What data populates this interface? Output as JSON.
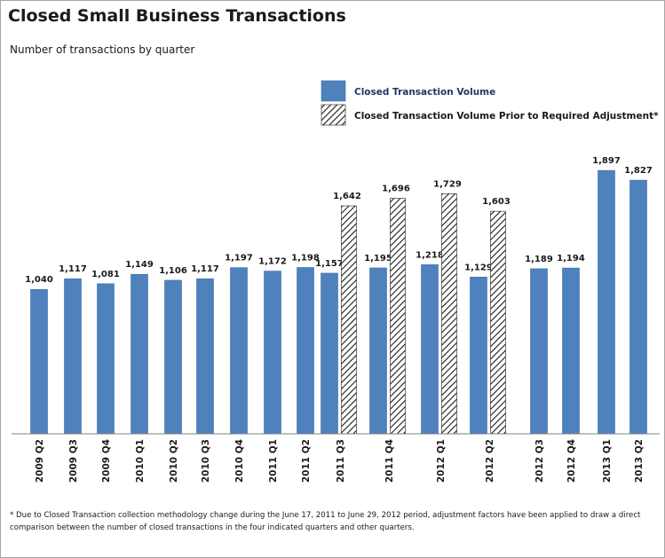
{
  "title": "Closed Small Business Transactions",
  "subtitle": "Number of transactions by quarter",
  "footnote": "* Due to Closed Transaction collection methodology change during the June 17, 2011 to June 29, 2012 period, adjustment factors have been applied to draw a direct comparison between the number of closed transactions in the four indicated quarters and other quarters.",
  "colors": {
    "primary_bar": "#4f81bd",
    "primary_bar_edge": "#3d6ea8",
    "hatch": "#1a1a1a",
    "legend_primary_text": "#1f3864",
    "legend_secondary_text": "#1a1a1a"
  },
  "chart_data": {
    "type": "bar",
    "title": "Closed Small Business Transactions",
    "subtitle": "Number of transactions by quarter",
    "categories": [
      "2009 Q2",
      "2009 Q3",
      "2009 Q4",
      "2010 Q1",
      "2010 Q2",
      "2010 Q3",
      "2010 Q4",
      "2011 Q1",
      "2011 Q2",
      "2011 Q3",
      "2011 Q4",
      "2012 Q1",
      "2012 Q2",
      "2012 Q3",
      "2012 Q4",
      "2013 Q1",
      "2013 Q2"
    ],
    "series": [
      {
        "name": "Closed Transaction Volume",
        "style": "solid",
        "values": [
          1040,
          1117,
          1081,
          1149,
          1106,
          1117,
          1197,
          1172,
          1198,
          1157,
          1195,
          1218,
          1129,
          1189,
          1194,
          1897,
          1827
        ],
        "labels": [
          "1,040",
          "1,117",
          "1,081",
          "1,149",
          "1,106",
          "1,117",
          "1,197",
          "1,172",
          "1,198",
          "1,157",
          "1,195",
          "1,218",
          "1,129",
          "1,189",
          "1,194",
          "1,897",
          "1,827"
        ]
      },
      {
        "name": "Closed Transaction Volume Prior to Required Adjustment*",
        "style": "hatched",
        "values": [
          null,
          null,
          null,
          null,
          null,
          null,
          null,
          null,
          null,
          1642,
          1696,
          1729,
          1603,
          null,
          null,
          null,
          null
        ],
        "labels": [
          null,
          null,
          null,
          null,
          null,
          null,
          null,
          null,
          null,
          "1,642",
          "1,696",
          "1,729",
          "1,603",
          null,
          null,
          null,
          null
        ]
      }
    ],
    "ylim": [
      0,
      2100
    ],
    "grid": false,
    "legend": "top-right",
    "y_axis_shown": false
  }
}
